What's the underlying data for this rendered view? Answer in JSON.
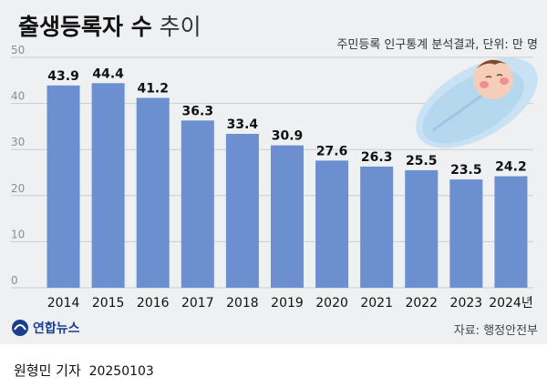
{
  "header": {
    "title_bold": "출생등록자 수",
    "title_light": "추이",
    "subtitle": "주민등록 인구통계 분석결과, 단위: 만 명"
  },
  "footer": {
    "logo_text": "연합뉴스",
    "source": "자료: 행정안전부",
    "byline_name": "원형민 기자",
    "byline_date": "20250103"
  },
  "colors": {
    "bar": "#6b8fcf",
    "background": "#eef0f2",
    "grid": "#c9ccd1"
  },
  "chart_data": {
    "type": "bar",
    "title": "출생등록자 수 추이",
    "categories": [
      "2014",
      "2015",
      "2016",
      "2017",
      "2018",
      "2019",
      "2020",
      "2021",
      "2022",
      "2023",
      "2024년"
    ],
    "values": [
      43.9,
      44.4,
      41.2,
      36.3,
      33.4,
      30.9,
      27.6,
      26.3,
      25.5,
      23.5,
      24.2
    ],
    "data_labels": [
      "43.9",
      "44.4",
      "41.2",
      "36.3",
      "33.4",
      "30.9",
      "27.6",
      "26.3",
      "25.5",
      "23.5",
      "24.2"
    ],
    "ylim": [
      0,
      50
    ],
    "yticks": [
      0,
      10,
      20,
      30,
      40,
      50
    ],
    "grid": true
  }
}
